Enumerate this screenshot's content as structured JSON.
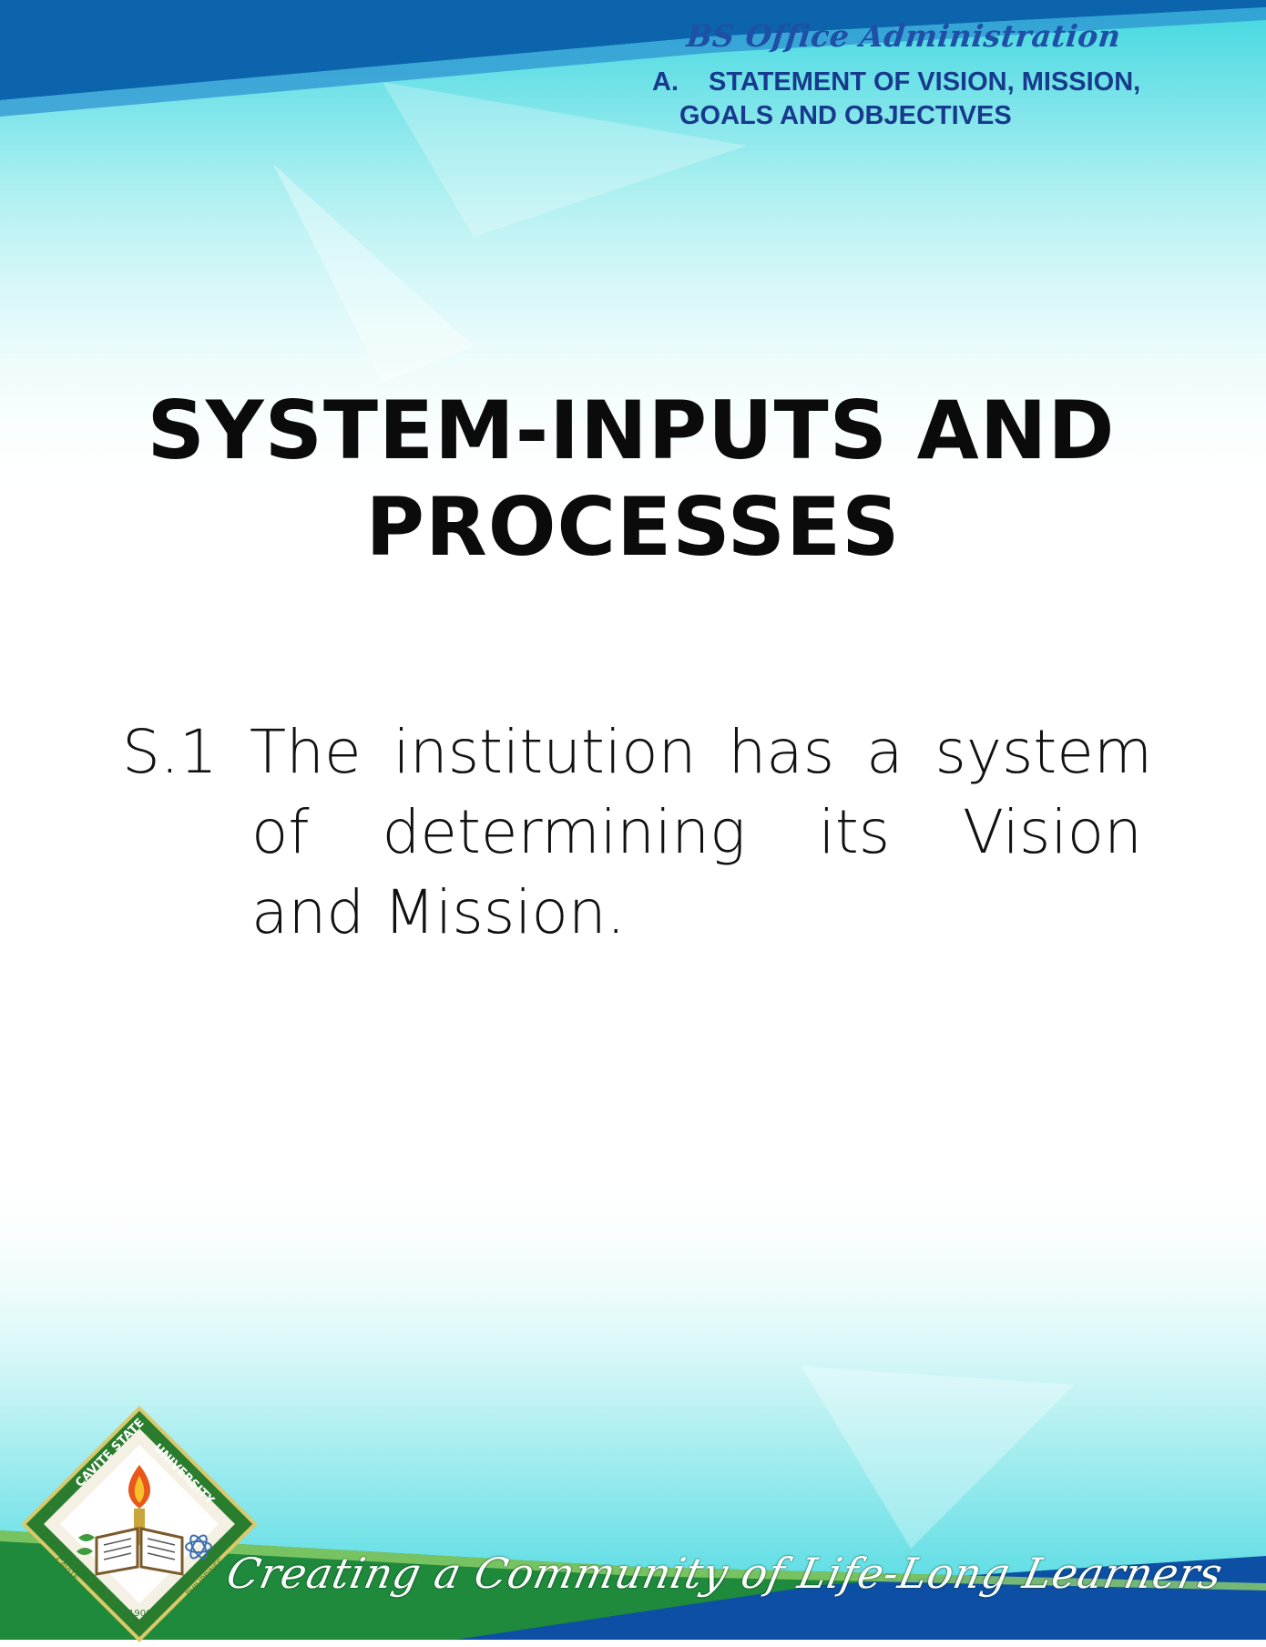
{
  "header": {
    "program": "BS Office Administration",
    "section_marker": "A.",
    "section_line1": "STATEMENT OF VISION, MISSION,",
    "section_line2": "GOALS AND OBJECTIVES"
  },
  "title": {
    "line1": "SYSTEM-INPUTS AND",
    "line2": "PROCESSES"
  },
  "statement": {
    "line1": "S.1 The institution has a system",
    "line2_words": [
      "of",
      "determining",
      "its",
      "Vision"
    ],
    "line3": "and Mission."
  },
  "footer": {
    "tagline": "Creating a Community of Life-Long Learners"
  },
  "seal": {
    "top_text": "CAVITE STATE UNIVERSITY",
    "bottom_left": "CAVITE",
    "bottom_right": "PHILIPPINES",
    "year": "1906"
  },
  "colors": {
    "header_blue": "#1f4fa6",
    "top_band": "#0e6fb8",
    "cyan_wash": "#6fe2e6",
    "footer_green": "#1f8a3c",
    "footer_blue": "#0c4fa5"
  }
}
